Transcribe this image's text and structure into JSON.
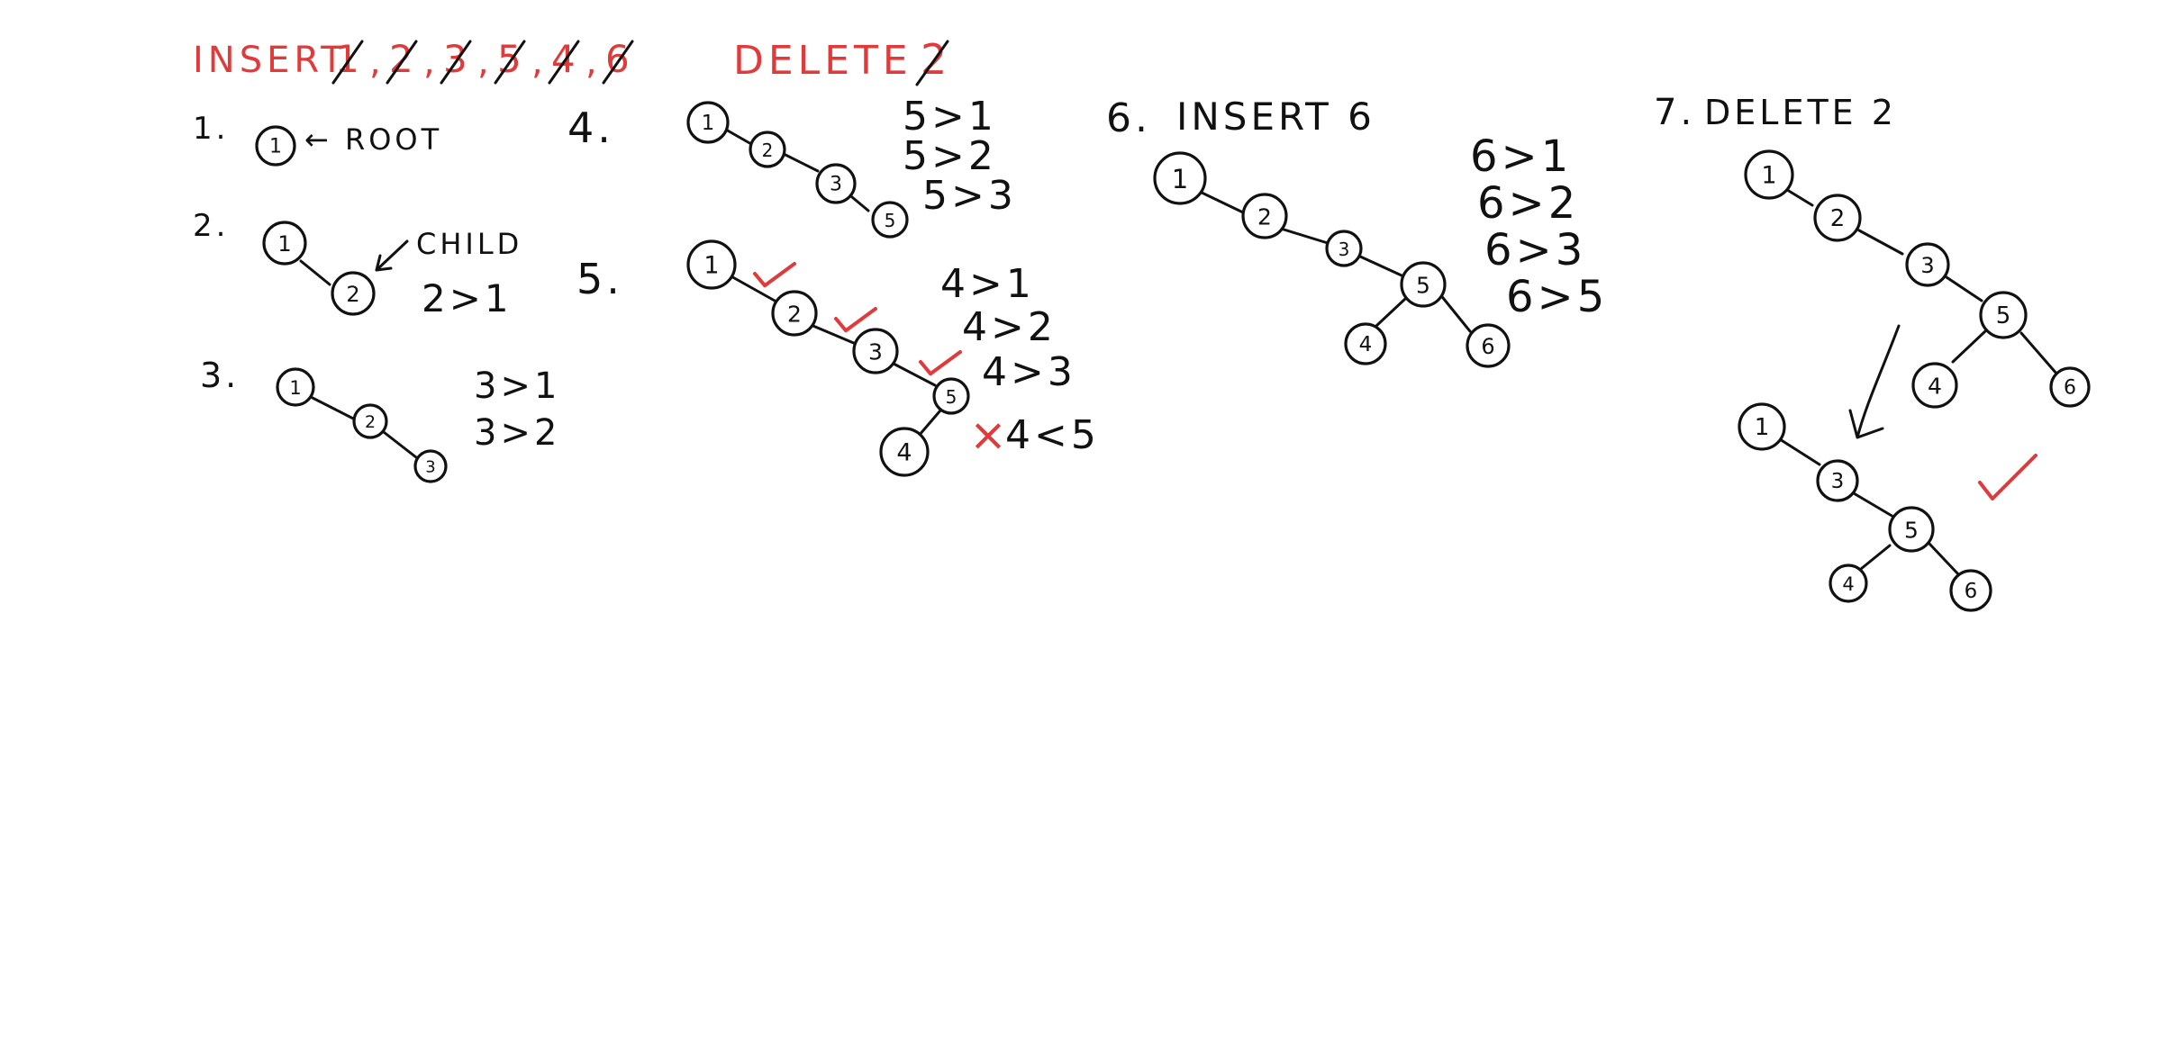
{
  "header": {
    "insert_label": "INSERT",
    "insert_seq": [
      {
        "sep": " ",
        "value": "1"
      },
      {
        "sep": ",",
        "value": "2"
      },
      {
        "sep": ",",
        "value": "3"
      },
      {
        "sep": ",",
        "value": "5"
      },
      {
        "sep": ",",
        "value": "4"
      },
      {
        "sep": ",",
        "value": "6"
      }
    ],
    "delete_label": "DELETE",
    "delete_value": "2"
  },
  "steps": [
    {
      "number": "1.",
      "root_label": "← ROOT",
      "nodes": [
        {
          "label": "1"
        }
      ]
    },
    {
      "number": "2.",
      "child_label": "CHILD",
      "nodes": [
        {
          "label": "1"
        },
        {
          "label": "2"
        }
      ],
      "comparisons": [
        "2>1"
      ]
    },
    {
      "number": "3.",
      "nodes": [
        {
          "label": "1"
        },
        {
          "label": "2"
        },
        {
          "label": "3"
        }
      ],
      "comparisons": [
        "3>1",
        "3>2"
      ]
    },
    {
      "number": "4.",
      "nodes": [
        {
          "label": "1"
        },
        {
          "label": "2"
        },
        {
          "label": "3"
        },
        {
          "label": "5"
        }
      ],
      "comparisons": [
        "5>1",
        "5>2",
        "5>3"
      ]
    },
    {
      "number": "5.",
      "nodes": [
        {
          "label": "1"
        },
        {
          "label": "2"
        },
        {
          "label": "3"
        },
        {
          "label": "5"
        },
        {
          "label": "4"
        }
      ],
      "comparisons": [
        "4>1",
        "4>2",
        "4>3",
        "4<5"
      ],
      "cross_mark": "×"
    },
    {
      "number": "6.",
      "title": "INSERT 6",
      "nodes": [
        {
          "label": "1"
        },
        {
          "label": "2"
        },
        {
          "label": "3"
        },
        {
          "label": "5"
        },
        {
          "label": "4"
        },
        {
          "label": "6"
        }
      ],
      "comparisons": [
        "6>1",
        "6>2",
        "6>3",
        "6>5"
      ]
    },
    {
      "number": "7.",
      "title": "DELETE 2",
      "before_nodes": [
        {
          "label": "1"
        },
        {
          "label": "2"
        },
        {
          "label": "3"
        },
        {
          "label": "5"
        },
        {
          "label": "4"
        },
        {
          "label": "6"
        }
      ],
      "after_nodes": [
        {
          "label": "1"
        },
        {
          "label": "3"
        },
        {
          "label": "5"
        },
        {
          "label": "4"
        },
        {
          "label": "6"
        }
      ]
    }
  ],
  "colors": {
    "ink": "#111111",
    "accent": "#e03a3a"
  }
}
